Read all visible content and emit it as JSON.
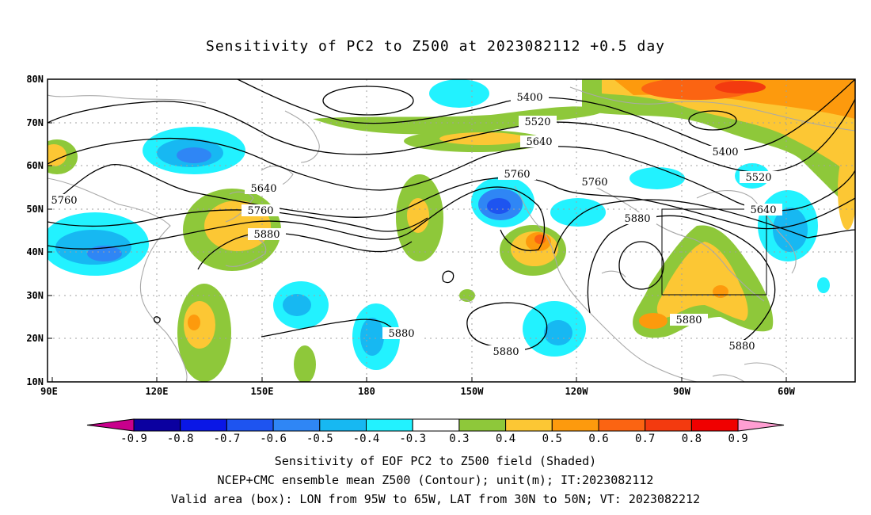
{
  "title": "Sensitivity of PC2 to Z500 at 2023082112 +0.5 day",
  "lat_ticks": [
    "80N",
    "70N",
    "60N",
    "50N",
    "40N",
    "30N",
    "20N",
    "10N"
  ],
  "lon_ticks": [
    "90E",
    "120E",
    "150E",
    "180",
    "150W",
    "120W",
    "90W",
    "60W"
  ],
  "contour_labels": [
    "5400",
    "5520",
    "5640",
    "5760",
    "5400",
    "5520",
    "5640",
    "5760",
    "5640",
    "5760",
    "5880",
    "5760",
    "5880",
    "5880",
    "5880",
    "5880",
    "5880"
  ],
  "colorbar": {
    "labels": [
      "-0.9",
      "-0.8",
      "-0.7",
      "-0.6",
      "-0.5",
      "-0.4",
      "-0.3",
      "0.3",
      "0.4",
      "0.5",
      "0.6",
      "0.7",
      "0.8",
      "0.9"
    ],
    "colors": [
      "#0b00a0",
      "#0a17e6",
      "#1e54f0",
      "#2f86f5",
      "#17b8f2",
      "#22f2ff",
      "#ffffff",
      "#8ec83a",
      "#fcc734",
      "#fd9a0d",
      "#fb6412",
      "#f33a0f",
      "#f00000"
    ],
    "left_arrow_color": "#c8008c",
    "right_arrow_color": "#ff9ed2"
  },
  "captions": [
    "Sensitivity of EOF PC2 to Z500 field (Shaded)",
    "NCEP+CMC ensemble mean Z500 (Contour); unit(m); IT:2023082112",
    "Valid area (box): LON from 95W to 65W, LAT from 30N to 50N; VT: 2023082212"
  ]
}
